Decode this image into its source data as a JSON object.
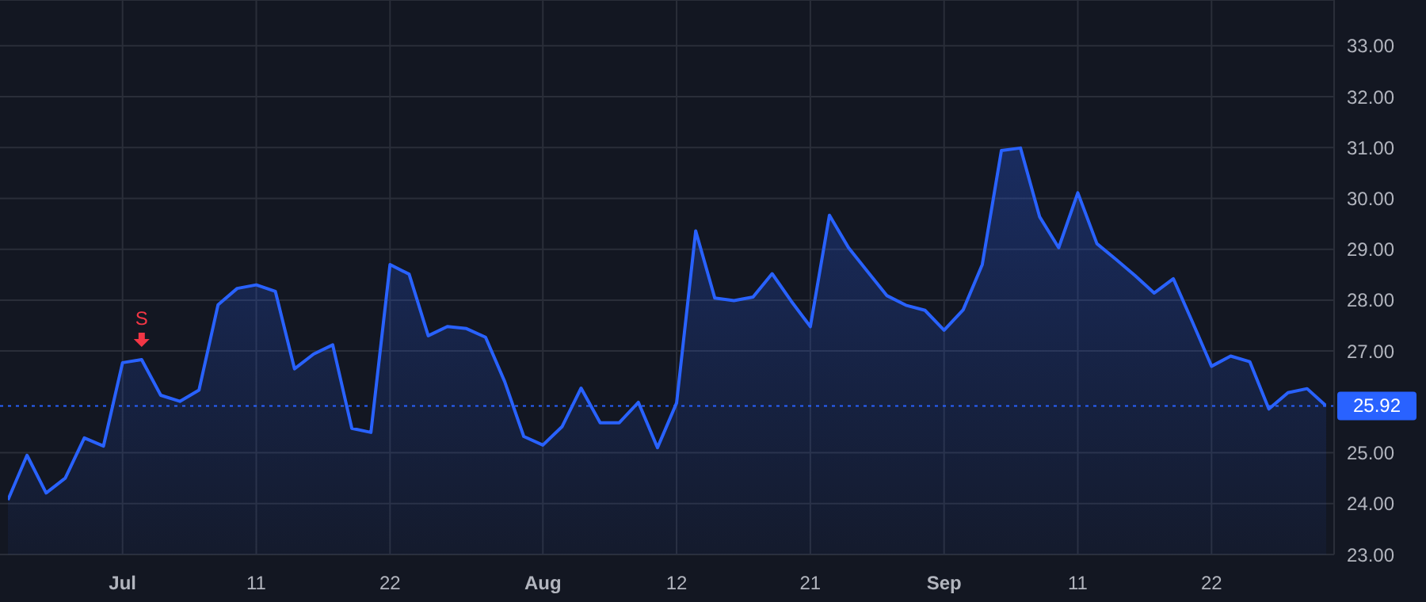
{
  "chart_data": {
    "type": "area",
    "categories": [
      null,
      null,
      null,
      null,
      null,
      null,
      "Jul",
      null,
      null,
      null,
      null,
      null,
      null,
      "11",
      null,
      null,
      null,
      null,
      null,
      null,
      "22",
      null,
      null,
      null,
      null,
      null,
      null,
      null,
      "Aug",
      null,
      null,
      null,
      null,
      null,
      null,
      "12",
      null,
      null,
      null,
      null,
      null,
      null,
      "21",
      null,
      null,
      null,
      null,
      null,
      null,
      "Sep",
      null,
      null,
      null,
      null,
      null,
      null,
      "11",
      null,
      null,
      null,
      null,
      null,
      null,
      "22",
      null,
      null,
      null,
      null,
      null,
      null
    ],
    "series": [
      {
        "color": "#2962ff",
        "values": [
          24.07,
          24.95,
          24.21,
          24.5,
          25.29,
          25.13,
          26.77,
          26.83,
          26.13,
          26.01,
          26.23,
          27.91,
          28.23,
          28.3,
          28.17,
          26.65,
          26.94,
          27.12,
          25.48,
          25.4,
          28.7,
          28.51,
          27.3,
          27.48,
          27.44,
          27.27,
          26.4,
          25.32,
          25.15,
          25.51,
          26.27,
          25.59,
          25.59,
          25.99,
          25.1,
          25.98,
          29.36,
          28.04,
          27.99,
          28.06,
          28.52,
          27.98,
          27.48,
          29.67,
          29.03,
          28.56,
          28.09,
          27.9,
          27.8,
          27.41,
          27.81,
          28.7,
          30.94,
          30.99,
          29.64,
          29.03,
          30.11,
          29.11,
          28.8,
          28.48,
          28.14,
          28.42,
          27.57,
          26.7,
          26.9,
          26.79,
          25.86,
          26.18,
          26.26,
          25.92
        ]
      }
    ],
    "ylim": [
      23,
      33.9
    ],
    "yticks": [
      {
        "value": 23,
        "label": "23.00"
      },
      {
        "value": 24,
        "label": "24.00"
      },
      {
        "value": 25,
        "label": "25.00"
      },
      {
        "value": 27,
        "label": "27.00"
      },
      {
        "value": 28,
        "label": "28.00"
      },
      {
        "value": 29,
        "label": "29.00"
      },
      {
        "value": 30,
        "label": "30.00"
      },
      {
        "value": 31,
        "label": "31.00"
      },
      {
        "value": 32,
        "label": "32.00"
      },
      {
        "value": 33,
        "label": "33.00"
      }
    ],
    "ref_lines": [
      {
        "axis": "y",
        "value": 25.92,
        "label": "25.92",
        "color": "#2962ff",
        "line_style": "dotted"
      }
    ],
    "annotations": [
      {
        "text": "S",
        "y": 26.83
      }
    ],
    "grid": true,
    "legend": false,
    "marker": "none",
    "line_style": "solid"
  }
}
